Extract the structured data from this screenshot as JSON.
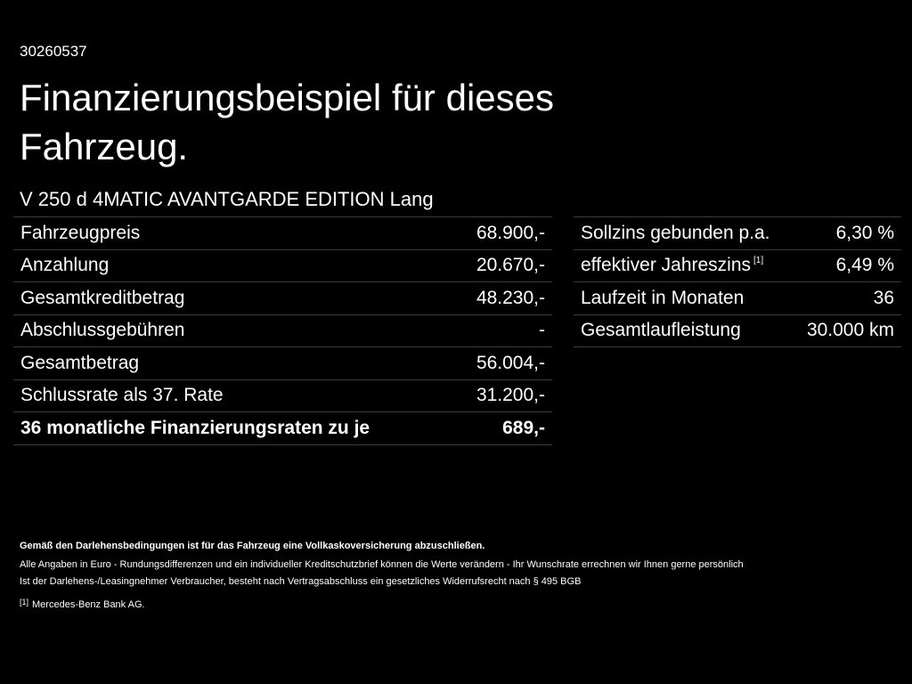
{
  "header": {
    "id": "30260537",
    "title_lines": [
      "Finanzierungsbeispiel für dieses",
      "Fahrzeug."
    ],
    "model": "V 250 d 4MATIC AVANTGARDE EDITION Lang"
  },
  "left_table": {
    "rows": [
      [
        "Fahrzeugpreis",
        "68.900,-"
      ],
      [
        "Anzahlung",
        "20.670,-"
      ],
      [
        "Gesamtkreditbetrag",
        "48.230,-"
      ],
      [
        "Abschlussgebühren",
        "-"
      ],
      [
        "Gesamtbetrag",
        "56.004,-"
      ],
      [
        "Schlussrate als 37. Rate",
        "31.200,-"
      ],
      [
        "36 monatliche Finanzierungsraten zu je",
        "689,-"
      ]
    ]
  },
  "right_table": {
    "rows": [
      [
        "Sollzins gebunden p.a.",
        "6,30 %"
      ],
      [
        "effektiver Jahreszins",
        "6,49 %",
        "[1]"
      ],
      [
        "Laufzeit in Monaten",
        "36"
      ],
      [
        "Gesamtlaufleistung",
        "30.000 km"
      ]
    ]
  },
  "footer": {
    "bold_note": "Gemäß den Darlehensbedingungen ist für das Fahrzeug eine Vollkaskoversicherung abzuschließen.",
    "notes": [
      "Alle Angaben in Euro - Rundungsdifferenzen und ein individueller Kreditschutzbrief können die Werte verändern - Ihr Wunschrate errechnen wir Ihnen gerne persönlich",
      "Ist der Darlehens-/Leasingnehmer Verbraucher, besteht nach Vertragsabschluss ein gesetzliches Widerrufsrecht nach § 495 BGB"
    ],
    "footnote_marker": "[1]",
    "footnote_text": "Mercedes-Benz Bank AG."
  }
}
